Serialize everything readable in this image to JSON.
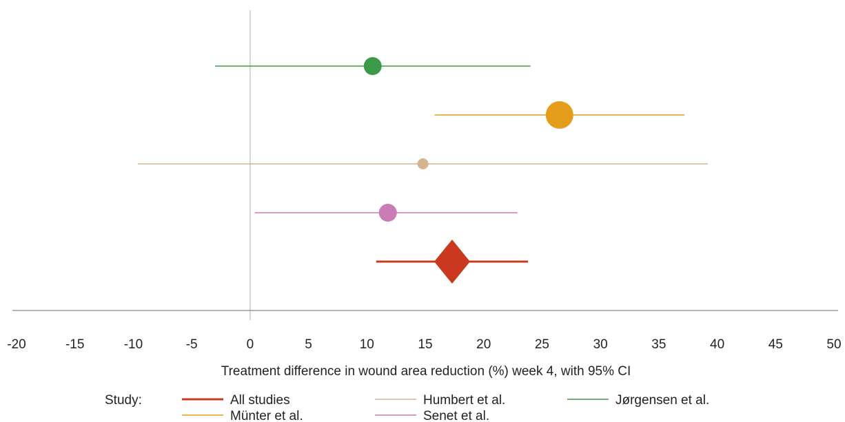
{
  "chart_data": {
    "type": "scatter",
    "subtype": "forest-plot",
    "xlabel": "Treatment difference in wound area reduction (%) week 4, with 95% CI",
    "xlim": [
      -20,
      50
    ],
    "xticks": [
      -20,
      -15,
      -10,
      -5,
      0,
      5,
      10,
      15,
      20,
      25,
      30,
      35,
      40,
      45,
      50
    ],
    "reference_line": 0,
    "grid": false,
    "legend_title": "Study:",
    "legend_position": "bottom",
    "series": [
      {
        "name": "Jørgensen et al.",
        "estimate": 10.5,
        "ci": [
          -3.0,
          24.0
        ],
        "color": "#3a9a47",
        "marker": "circle",
        "weight": "medium"
      },
      {
        "name": "Münter et al.",
        "estimate": 26.5,
        "ci": [
          15.8,
          37.2
        ],
        "color": "#e49d1b",
        "marker": "circle",
        "weight": "large"
      },
      {
        "name": "Humbert et al.",
        "estimate": 14.8,
        "ci": [
          -9.6,
          39.2
        ],
        "color": "#d4b48e",
        "marker": "circle",
        "weight": "small"
      },
      {
        "name": "Senet et al.",
        "estimate": 11.8,
        "ci": [
          0.4,
          22.9
        ],
        "color": "#c97cb5",
        "marker": "circle",
        "weight": "medium"
      },
      {
        "name": "All studies",
        "estimate": 17.3,
        "ci": [
          10.8,
          23.8
        ],
        "color": "#c9381f",
        "marker": "diamond",
        "weight": "pooled"
      }
    ],
    "legend_order": [
      "All studies",
      "Humbert et al.",
      "Jørgensen et al.",
      "Münter et al.",
      "Senet et al."
    ]
  }
}
